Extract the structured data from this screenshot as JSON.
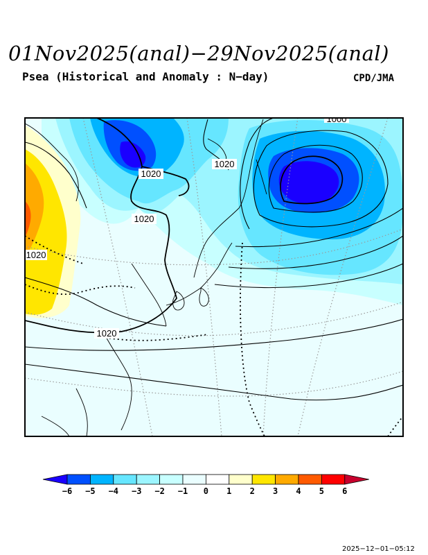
{
  "header": {
    "title": "01Nov2025(anal)−29Nov2025(anal)",
    "subtitle": "Psea (Historical and Anomaly : N−day)",
    "agency": "CPD/JMA"
  },
  "map": {
    "isobar_labels": [
      "1020",
      "1020",
      "1020",
      "1020",
      "1020",
      "1000"
    ]
  },
  "colorbar": {
    "ticks": [
      "−6",
      "−5",
      "−4",
      "−3",
      "−2",
      "−1",
      "0",
      "1",
      "2",
      "3",
      "4",
      "5",
      "6"
    ],
    "colors": [
      "#1a00ff",
      "#0050ff",
      "#00b4ff",
      "#66e6ff",
      "#9cf5ff",
      "#c8ffff",
      "#eafeff",
      "#ffffff",
      "#ffffcc",
      "#ffe600",
      "#ffaa00",
      "#ff5a00",
      "#ff0000",
      "#c8002d"
    ]
  },
  "footer": {
    "timestamp": "2025−12−01−05:12"
  }
}
